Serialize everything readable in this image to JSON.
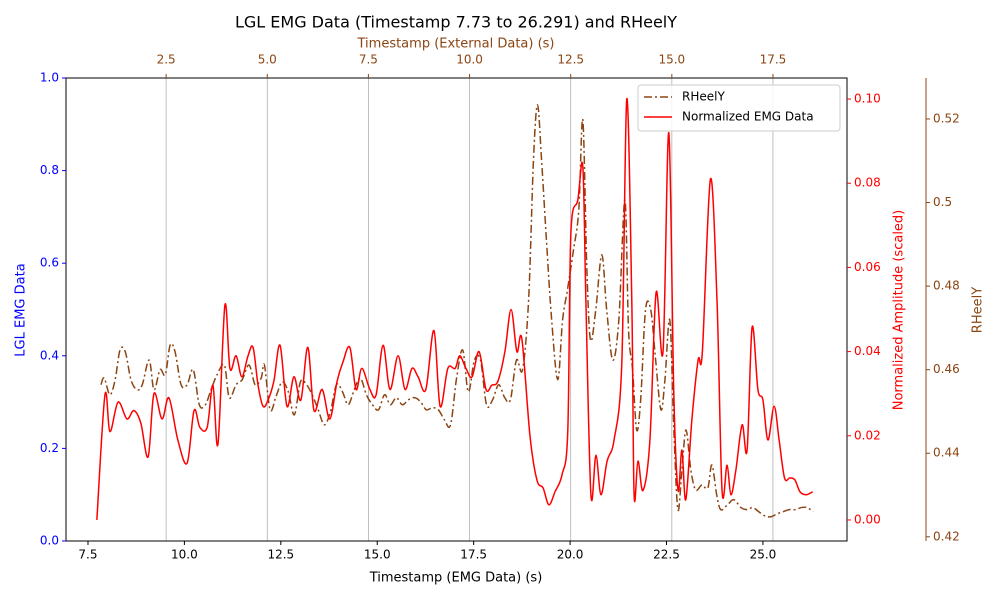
{
  "chart_data": {
    "type": "line",
    "title": "LGL EMG Data (Timestamp 7.73 to 26.291) and RHeelY",
    "x_label": "Timestamp (EMG Data) (s)",
    "x2_label": "Timestamp (External Data) (s)",
    "y_label": "LGL EMG Data",
    "y2_label": "Normalized Amplitude (scaled)",
    "y3_label": "RHeelY",
    "xlim": [
      6.93,
      27.18
    ],
    "xticks": [
      {
        "value": 7.5,
        "label": "7.5"
      },
      {
        "value": 10,
        "label": "10.0"
      },
      {
        "value": 12.5,
        "label": "12.5"
      },
      {
        "value": 15,
        "label": "15.0"
      },
      {
        "value": 17.5,
        "label": "17.5"
      },
      {
        "value": 20,
        "label": "20.0"
      },
      {
        "value": 22.5,
        "label": "22.5"
      },
      {
        "value": 25,
        "label": "25.0"
      }
    ],
    "x2lim": [
      0.025,
      19.33
    ],
    "x2ticks": [
      {
        "value": 2.5,
        "label": "2.5"
      },
      {
        "value": 5,
        "label": "5.0"
      },
      {
        "value": 7.5,
        "label": "7.5"
      },
      {
        "value": 10,
        "label": "10.0"
      },
      {
        "value": 12.5,
        "label": "12.5"
      },
      {
        "value": 15,
        "label": "15.0"
      },
      {
        "value": 17.5,
        "label": "17.5"
      }
    ],
    "ylim": [
      0,
      1
    ],
    "yticks": [
      {
        "value": 0,
        "label": "0.0"
      },
      {
        "value": 0.2,
        "label": "0.2"
      },
      {
        "value": 0.4,
        "label": "0.4"
      },
      {
        "value": 0.6,
        "label": "0.6"
      },
      {
        "value": 0.8,
        "label": "0.8"
      },
      {
        "value": 1,
        "label": "1.0"
      }
    ],
    "y2lim": [
      -0.005,
      0.105
    ],
    "y2ticks": [
      {
        "value": 0,
        "label": "0.00"
      },
      {
        "value": 0.02,
        "label": "0.02"
      },
      {
        "value": 0.04,
        "label": "0.04"
      },
      {
        "value": 0.06,
        "label": "0.06"
      },
      {
        "value": 0.08,
        "label": "0.08"
      },
      {
        "value": 0.1,
        "label": "0.10"
      }
    ],
    "y3lim": [
      0.419,
      0.5298
    ],
    "y3ticks": [
      0.42,
      0.44,
      0.46,
      0.48,
      0.5,
      0.52
    ],
    "grid": "x2",
    "legend": "upper right",
    "series": [
      {
        "name": "RHeelY",
        "color": "#8b4513",
        "linestyle": "dashdot",
        "axis": "y3",
        "xaxis": "x2",
        "x": [
          0.89,
          0.97,
          1.11,
          1.24,
          1.36,
          1.49,
          1.63,
          1.78,
          1.91,
          2.08,
          2.2,
          2.35,
          2.48,
          2.6,
          2.72,
          2.87,
          3.02,
          3.17,
          3.32,
          3.47,
          3.61,
          3.76,
          3.94,
          4.06,
          4.23,
          4.38,
          4.55,
          4.7,
          4.85,
          4.93,
          5.07,
          5.22,
          5.37,
          5.52,
          5.67,
          5.82,
          5.97,
          6.11,
          6.26,
          6.41,
          6.56,
          6.71,
          6.86,
          7.0,
          7.15,
          7.3,
          7.45,
          7.6,
          7.75,
          7.9,
          8.04,
          8.19,
          8.34,
          8.49,
          8.64,
          8.79,
          8.93,
          9.08,
          9.23,
          9.38,
          9.53,
          9.68,
          9.83,
          9.97,
          10.12,
          10.27,
          10.42,
          10.57,
          10.72,
          10.87,
          11.01,
          11.16,
          11.31,
          11.46,
          11.58,
          11.68,
          11.78,
          11.9,
          12.03,
          12.18,
          12.3,
          12.42,
          12.57,
          12.7,
          12.8,
          12.9,
          12.99,
          13.12,
          13.27,
          13.39,
          13.54,
          13.69,
          13.84,
          13.93,
          14.03,
          14.13,
          14.23,
          14.35,
          14.48,
          14.6,
          14.73,
          14.83,
          14.95,
          15.05,
          15.15,
          15.25,
          15.35,
          15.47,
          15.59,
          15.74,
          15.89,
          15.99,
          16.11,
          16.21,
          16.38,
          16.53,
          16.71,
          16.86,
          17.0,
          17.15,
          17.3,
          17.45,
          17.6,
          17.75,
          17.9,
          18.05,
          18.2,
          18.35,
          18.49
        ],
        "values": [
          0.4564,
          0.458,
          0.454,
          0.4576,
          0.4647,
          0.4643,
          0.4576,
          0.4552,
          0.4564,
          0.4623,
          0.4552,
          0.46,
          0.4588,
          0.4659,
          0.4643,
          0.4564,
          0.4564,
          0.46,
          0.4516,
          0.4516,
          0.4552,
          0.4588,
          0.4611,
          0.4533,
          0.4564,
          0.4576,
          0.4611,
          0.4564,
          0.458,
          0.4611,
          0.4504,
          0.4537,
          0.4571,
          0.4547,
          0.4492,
          0.4571,
          0.4564,
          0.454,
          0.4504,
          0.4468,
          0.4499,
          0.4564,
          0.4547,
          0.4516,
          0.4552,
          0.458,
          0.454,
          0.4516,
          0.4504,
          0.454,
          0.4516,
          0.4533,
          0.4516,
          0.4528,
          0.4533,
          0.4523,
          0.4504,
          0.4509,
          0.4504,
          0.448,
          0.4468,
          0.458,
          0.4647,
          0.4547,
          0.4623,
          0.4623,
          0.4516,
          0.4528,
          0.4564,
          0.4533,
          0.4528,
          0.4623,
          0.46,
          0.4767,
          0.5102,
          0.5234,
          0.5102,
          0.4911,
          0.4719,
          0.4576,
          0.4719,
          0.4791,
          0.4887,
          0.4982,
          0.5198,
          0.4839,
          0.4671,
          0.4743,
          0.4875,
          0.4743,
          0.4623,
          0.4719,
          0.5006,
          0.4695,
          0.46,
          0.4456,
          0.4528,
          0.4743,
          0.4743,
          0.4623,
          0.4504,
          0.4576,
          0.4719,
          0.4456,
          0.4265,
          0.436,
          0.4456,
          0.436,
          0.4312,
          0.4324,
          0.4317,
          0.4372,
          0.43,
          0.4265,
          0.4277,
          0.4289,
          0.427,
          0.4265,
          0.427,
          0.426,
          0.425,
          0.4248,
          0.4255,
          0.426,
          0.4265,
          0.4265,
          0.427,
          0.427,
          0.426
        ]
      },
      {
        "name": "Normalized EMG Data",
        "color": "#ff0000",
        "linestyle": "solid",
        "axis": "y2",
        "xaxis": "x",
        "x": [
          7.73,
          7.94,
          8.07,
          8.28,
          8.51,
          8.69,
          8.87,
          9.06,
          9.21,
          9.42,
          9.6,
          9.83,
          10.07,
          10.25,
          10.4,
          10.59,
          10.74,
          10.87,
          11.05,
          11.18,
          11.34,
          11.49,
          11.65,
          11.78,
          11.91,
          12.04,
          12.17,
          12.32,
          12.48,
          12.66,
          12.84,
          13.02,
          13.2,
          13.36,
          13.57,
          13.77,
          13.96,
          14.11,
          14.29,
          14.45,
          14.6,
          14.81,
          14.97,
          15.15,
          15.33,
          15.54,
          15.72,
          15.9,
          16.06,
          16.26,
          16.47,
          16.63,
          16.83,
          17.02,
          17.14,
          17.3,
          17.46,
          17.64,
          17.82,
          17.97,
          18.13,
          18.31,
          18.47,
          18.62,
          18.75,
          18.96,
          19.14,
          19.3,
          19.45,
          19.61,
          19.79,
          19.94,
          20.02,
          20.2,
          20.33,
          20.41,
          20.54,
          20.67,
          20.8,
          20.96,
          21.14,
          21.34,
          21.47,
          21.6,
          21.66,
          21.76,
          21.89,
          22.07,
          22.23,
          22.41,
          22.56,
          22.69,
          22.8,
          22.9,
          23.0,
          23.16,
          23.32,
          23.43,
          23.64,
          23.81,
          23.94,
          24.07,
          24.17,
          24.3,
          24.46,
          24.59,
          24.72,
          24.87,
          25.0,
          25.13,
          25.29,
          25.42,
          25.56,
          25.7,
          25.83,
          25.96,
          26.12,
          26.29
        ],
        "values": [
          0.0,
          0.0297,
          0.021,
          0.028,
          0.024,
          0.026,
          0.023,
          0.015,
          0.03,
          0.024,
          0.029,
          0.019,
          0.0135,
          0.026,
          0.022,
          0.022,
          0.032,
          0.018,
          0.051,
          0.036,
          0.039,
          0.034,
          0.039,
          0.041,
          0.032,
          0.027,
          0.0285,
          0.033,
          0.0415,
          0.027,
          0.034,
          0.0285,
          0.041,
          0.026,
          0.031,
          0.024,
          0.033,
          0.0375,
          0.041,
          0.031,
          0.036,
          0.031,
          0.0297,
          0.0415,
          0.031,
          0.039,
          0.031,
          0.036,
          0.034,
          0.031,
          0.045,
          0.027,
          0.036,
          0.036,
          0.039,
          0.036,
          0.034,
          0.04,
          0.031,
          0.032,
          0.033,
          0.04,
          0.05,
          0.04,
          0.043,
          0.02,
          0.0095,
          0.0076,
          0.0036,
          0.0067,
          0.0107,
          0.021,
          0.068,
          0.076,
          0.084,
          0.052,
          0.006,
          0.0154,
          0.006,
          0.014,
          0.019,
          0.037,
          0.1,
          0.052,
          0.006,
          0.014,
          0.007,
          0.019,
          0.054,
          0.04,
          0.092,
          0.0297,
          0.007,
          0.0166,
          0.0048,
          0.024,
          0.038,
          0.04,
          0.081,
          0.052,
          0.007,
          0.013,
          0.006,
          0.0119,
          0.0226,
          0.0166,
          0.0458,
          0.031,
          0.0285,
          0.019,
          0.027,
          0.019,
          0.01,
          0.01,
          0.0095,
          0.0067,
          0.006,
          0.0067
        ]
      }
    ]
  }
}
